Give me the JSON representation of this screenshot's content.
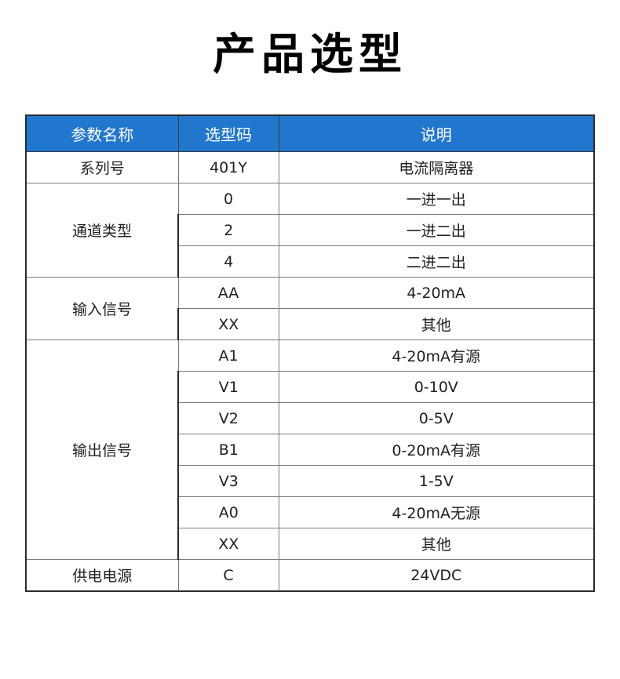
{
  "page": {
    "title": "产品选型",
    "background": "#ffffff"
  },
  "colors": {
    "header_bg": "#2176ce",
    "header_text": "#ffffff",
    "body_text": "#1f1f1f",
    "outer_border": "#2b2b2b",
    "inner_border": "#7a7a7a"
  },
  "table": {
    "header": {
      "param": "参数名称",
      "code": "选型码",
      "desc": "说明"
    },
    "groups": [
      {
        "name": "系列号",
        "rows": [
          {
            "code": "401Y",
            "desc": "电流隔离器"
          }
        ]
      },
      {
        "name": "通道类型",
        "rows": [
          {
            "code": "0",
            "desc": "一进一出"
          },
          {
            "code": "2",
            "desc": "一进二出"
          },
          {
            "code": "4",
            "desc": "二进二出"
          }
        ]
      },
      {
        "name": "输入信号",
        "rows": [
          {
            "code": "AA",
            "desc": "4-20mA"
          },
          {
            "code": "XX",
            "desc": "其他"
          }
        ]
      },
      {
        "name": "输出信号",
        "rows": [
          {
            "code": "A1",
            "desc": "4-20mA有源"
          },
          {
            "code": "V1",
            "desc": "0-10V"
          },
          {
            "code": "V2",
            "desc": "0-5V"
          },
          {
            "code": "B1",
            "desc": "0-20mA有源"
          },
          {
            "code": "V3",
            "desc": "1-5V"
          },
          {
            "code": "A0",
            "desc": "4-20mA无源"
          },
          {
            "code": "XX",
            "desc": "其他"
          }
        ]
      },
      {
        "name": "供电电源",
        "rows": [
          {
            "code": "C",
            "desc": "24VDC"
          }
        ]
      }
    ]
  }
}
